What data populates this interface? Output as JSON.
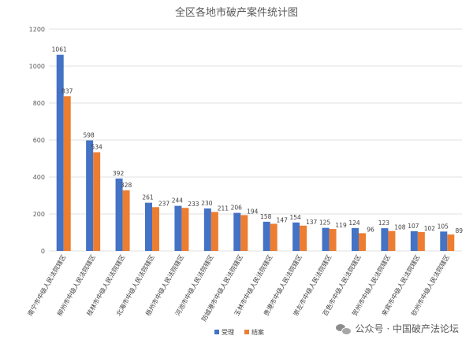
{
  "chart_data": {
    "type": "bar",
    "title": "全区各地市破产案件统计图",
    "categories": [
      "南宁市中级人民法院辖区",
      "柳州市中级人民法院辖区",
      "桂林市中级人民法院辖区",
      "北海市中级人民法院辖区",
      "梧州市中级人民法院辖区",
      "河池市中级人民法院辖区",
      "防城港市中级人民法院辖区",
      "玉林市中级人民法院辖区",
      "贵港市中级人民法院辖区",
      "崇左市中级人民法院辖区",
      "百色市中级人民法院辖区",
      "贺州市中级人民法院辖区",
      "来宾市中级人民法院辖区",
      "钦州市中级人民法院辖区"
    ],
    "series": [
      {
        "name": "受理",
        "color": "#4472C4",
        "values": [
          1061,
          598,
          392,
          261,
          244,
          230,
          206,
          158,
          154,
          125,
          124,
          123,
          107,
          105
        ]
      },
      {
        "name": "结案",
        "color": "#ED7D31",
        "values": [
          837,
          534,
          328,
          237,
          233,
          211,
          194,
          147,
          137,
          119,
          96,
          108,
          102,
          89
        ]
      }
    ],
    "ylim": [
      0,
      1200
    ],
    "yticks": [
      0,
      200,
      400,
      600,
      800,
      1000,
      1200
    ],
    "grid": true,
    "legend_position": "bottom"
  },
  "watermark": {
    "text": "公众号 · 中国破产法论坛",
    "icon": "wechat-icon"
  }
}
